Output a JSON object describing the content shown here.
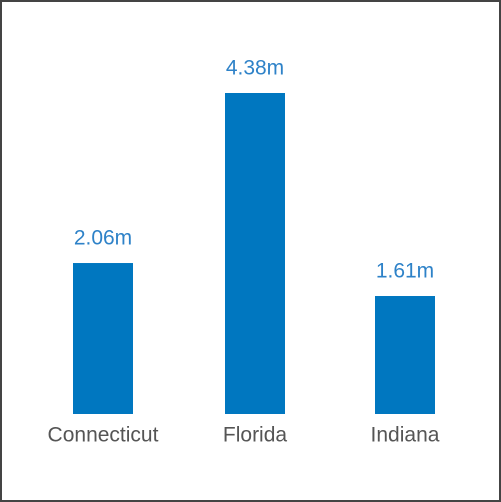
{
  "chart_data": {
    "type": "bar",
    "categories": [
      "Connecticut",
      "Florida",
      "Indiana"
    ],
    "values": [
      2.06,
      4.38,
      1.61
    ],
    "value_labels": [
      "2.06m",
      "4.38m",
      "1.61m"
    ],
    "color": "#0077c0"
  }
}
